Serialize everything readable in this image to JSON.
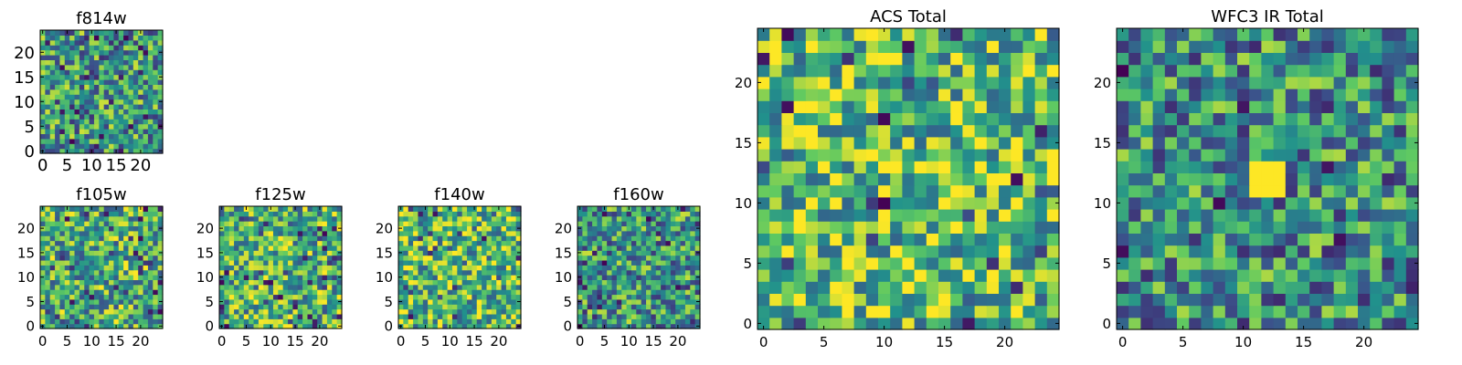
{
  "figure": {
    "grid_size": 25,
    "colormap": "viridis",
    "colormap_stops": [
      "#440154",
      "#3b528b",
      "#21918c",
      "#5ec962",
      "#fde725"
    ]
  },
  "chart_data": [
    {
      "type": "heatmap",
      "title": "f814w",
      "xticks": [
        "0",
        "5",
        "10",
        "15",
        "20"
      ],
      "yticks": [
        "0",
        "5",
        "10",
        "15",
        "20"
      ],
      "xlim": [
        -0.5,
        24.5
      ],
      "ylim": [
        -0.5,
        24.5
      ],
      "seed": 11,
      "bias": 0.0,
      "dark_frac": 0.09,
      "values": []
    },
    {
      "type": "heatmap",
      "title": "f105w",
      "xticks": [
        "0",
        "5",
        "10",
        "15",
        "20"
      ],
      "yticks": [
        "0",
        "5",
        "10",
        "15",
        "20"
      ],
      "xlim": [
        -0.5,
        24.5
      ],
      "ylim": [
        -0.5,
        24.5
      ],
      "seed": 23,
      "bias": 0.08,
      "dark_frac": 0.06,
      "values": []
    },
    {
      "type": "heatmap",
      "title": "f125w",
      "xticks": [
        "0",
        "5",
        "10",
        "15",
        "20"
      ],
      "yticks": [
        "0",
        "5",
        "10",
        "15",
        "20"
      ],
      "xlim": [
        -0.5,
        24.5
      ],
      "ylim": [
        -0.5,
        24.5
      ],
      "seed": 37,
      "bias": 0.1,
      "dark_frac": 0.07,
      "values": []
    },
    {
      "type": "heatmap",
      "title": "f140w",
      "xticks": [
        "0",
        "5",
        "10",
        "15",
        "20"
      ],
      "yticks": [
        "0",
        "5",
        "10",
        "15",
        "20"
      ],
      "xlim": [
        -0.5,
        24.5
      ],
      "ylim": [
        -0.5,
        24.5
      ],
      "seed": 41,
      "bias": 0.12,
      "dark_frac": 0.05,
      "values": []
    },
    {
      "type": "heatmap",
      "title": "f160w",
      "xticks": [
        "0",
        "5",
        "10",
        "15",
        "20"
      ],
      "yticks": [
        "0",
        "5",
        "10",
        "15",
        "20"
      ],
      "xlim": [
        -0.5,
        24.5
      ],
      "ylim": [
        -0.5,
        24.5
      ],
      "seed": 53,
      "bias": 0.0,
      "dark_frac": 0.09,
      "values": []
    },
    {
      "type": "heatmap",
      "title": "ACS Total",
      "xticks": [
        "0",
        "5",
        "10",
        "15",
        "20"
      ],
      "yticks": [
        "0",
        "5",
        "10",
        "15",
        "20"
      ],
      "xlim": [
        -0.5,
        24.5
      ],
      "ylim": [
        -0.5,
        24.5
      ],
      "seed": 67,
      "bias": 0.15,
      "dark_frac": 0.04,
      "values": []
    },
    {
      "type": "heatmap",
      "title": "WFC3 IR Total",
      "xticks": [
        "0",
        "5",
        "10",
        "15",
        "20"
      ],
      "yticks": [
        "0",
        "5",
        "10",
        "15",
        "20"
      ],
      "xlim": [
        -0.5,
        24.5
      ],
      "ylim": [
        -0.5,
        24.5
      ],
      "seed": 79,
      "bias": -0.05,
      "dark_frac": 0.03,
      "hotspot": {
        "x0": 11,
        "x1": 13,
        "y0": 11,
        "y1": 13
      },
      "values": []
    }
  ]
}
